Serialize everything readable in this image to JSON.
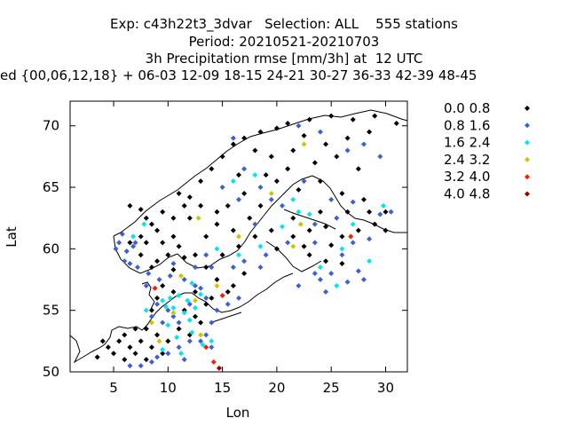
{
  "title": {
    "line1": "Exp: c43h22t3_3dvar   Selection: ALL    555 stations",
    "line2": "Period: 20210521-20210703",
    "line3": "3h Precipitation rmse [mm/3h] at  12 UTC",
    "line4": "ed {00,06,12,18} + 06-03 12-09 18-15 24-21 30-27 36-33 42-39 48-45"
  },
  "chart_data": {
    "type": "scatter",
    "xlabel": "Lon",
    "ylabel": "Lat",
    "xlim": [
      1,
      32
    ],
    "ylim": [
      50,
      72
    ],
    "xticks": [
      5,
      10,
      15,
      20,
      25,
      30
    ],
    "yticks": [
      50,
      55,
      60,
      65,
      70
    ],
    "legend_position": "right",
    "legend": [
      {
        "label": "0.0 0.8",
        "color": "#000000"
      },
      {
        "label": "0.8 1.6",
        "color": "#3a5fd8"
      },
      {
        "label": "1.6 2.4",
        "color": "#00e5ee"
      },
      {
        "label": "2.4 3.2",
        "color": "#c8c800"
      },
      {
        "label": "3.2 4.0",
        "color": "#ff1a00"
      },
      {
        "label": "4.0 4.8",
        "color": "#990000"
      }
    ],
    "series": [
      {
        "name": "0.0 0.8",
        "points": [
          [
            6.5,
            63.5
          ],
          [
            7.5,
            63.2
          ],
          [
            8.0,
            62.5
          ],
          [
            8.5,
            62.0
          ],
          [
            9.0,
            61.5
          ],
          [
            7.5,
            61.0
          ],
          [
            8.0,
            60.5
          ],
          [
            9.5,
            60.5
          ],
          [
            10.5,
            61.0
          ],
          [
            11.0,
            60.2
          ],
          [
            10.0,
            59.5
          ],
          [
            11.5,
            59.3
          ],
          [
            9.0,
            59.0
          ],
          [
            8.5,
            58.5
          ],
          [
            10.5,
            58.3
          ],
          [
            12.0,
            62.5
          ],
          [
            11.5,
            63.5
          ],
          [
            12.0,
            64.2
          ],
          [
            13.0,
            65.5
          ],
          [
            14.0,
            66.5
          ],
          [
            15.0,
            67.5
          ],
          [
            16.0,
            68.5
          ],
          [
            17.0,
            69.0
          ],
          [
            18.5,
            69.5
          ],
          [
            20.0,
            69.8
          ],
          [
            21.0,
            70.2
          ],
          [
            23.0,
            70.5
          ],
          [
            25.0,
            70.8
          ],
          [
            27.0,
            70.5
          ],
          [
            29.0,
            70.8
          ],
          [
            31.0,
            70.2
          ],
          [
            22.5,
            69.2
          ],
          [
            24.5,
            68.5
          ],
          [
            26.5,
            69.0
          ],
          [
            28.5,
            69.5
          ],
          [
            18.0,
            68.0
          ],
          [
            19.5,
            67.5
          ],
          [
            21.0,
            66.5
          ],
          [
            23.5,
            67.0
          ],
          [
            25.5,
            67.5
          ],
          [
            27.5,
            66.5
          ],
          [
            20.0,
            65.5
          ],
          [
            22.0,
            64.8
          ],
          [
            24.0,
            65.5
          ],
          [
            26.0,
            64.5
          ],
          [
            28.0,
            64.0
          ],
          [
            17.0,
            64.5
          ],
          [
            15.5,
            63.5
          ],
          [
            14.5,
            62.0
          ],
          [
            13.5,
            61.0
          ],
          [
            16.0,
            61.5
          ],
          [
            17.5,
            62.5
          ],
          [
            18.5,
            63.5
          ],
          [
            16.5,
            60.2
          ],
          [
            15.0,
            59.5
          ],
          [
            13.5,
            58.5
          ],
          [
            14.5,
            57.5
          ],
          [
            16.0,
            57.0
          ],
          [
            17.0,
            58.0
          ],
          [
            15.5,
            56.5
          ],
          [
            12.5,
            56.5
          ],
          [
            14.0,
            56.0
          ],
          [
            20.0,
            60.0
          ],
          [
            21.5,
            61.0
          ],
          [
            23.0,
            61.5
          ],
          [
            24.5,
            61.8
          ],
          [
            26.0,
            61.0
          ],
          [
            27.5,
            61.5
          ],
          [
            29.0,
            62.0
          ],
          [
            30.0,
            61.5
          ],
          [
            25.0,
            60.3
          ],
          [
            22.5,
            60.2
          ],
          [
            24.0,
            63.0
          ],
          [
            26.5,
            63.0
          ],
          [
            28.5,
            63.0
          ],
          [
            30.0,
            63.0
          ],
          [
            21.5,
            62.5
          ],
          [
            23.0,
            59.5
          ],
          [
            26.0,
            58.8
          ],
          [
            24.5,
            59.0
          ],
          [
            5.0,
            51.5
          ],
          [
            5.5,
            52.5
          ],
          [
            6.0,
            51.0
          ],
          [
            6.5,
            52.0
          ],
          [
            7.0,
            51.5
          ],
          [
            7.5,
            52.5
          ],
          [
            8.0,
            51.0
          ],
          [
            8.5,
            52.0
          ],
          [
            9.0,
            53.0
          ],
          [
            9.5,
            51.5
          ],
          [
            10.0,
            52.5
          ],
          [
            7.0,
            53.5
          ],
          [
            8.0,
            53.5
          ],
          [
            4.5,
            52.0
          ],
          [
            3.5,
            51.2
          ],
          [
            4.0,
            52.5
          ],
          [
            6.0,
            53.0
          ],
          [
            11.0,
            53.5
          ],
          [
            12.0,
            53.0
          ],
          [
            13.0,
            54.0
          ],
          [
            11.5,
            55.0
          ],
          [
            10.5,
            56.5
          ],
          [
            9.0,
            56.0
          ],
          [
            9.5,
            57.0
          ],
          [
            8.5,
            55.0
          ],
          [
            12.5,
            54.5
          ],
          [
            13.5,
            55.5
          ],
          [
            7.5,
            59.5
          ],
          [
            6.5,
            60.5
          ],
          [
            9.5,
            63.0
          ],
          [
            10.5,
            62.5
          ],
          [
            12.5,
            59.5
          ],
          [
            16.5,
            66.0
          ],
          [
            19.0,
            66.0
          ],
          [
            21.5,
            68.0
          ],
          [
            14.5,
            63.0
          ],
          [
            13.0,
            63.5
          ],
          [
            11.0,
            64.5
          ],
          [
            19.5,
            61.5
          ],
          [
            18.0,
            61.0
          ]
        ]
      },
      {
        "name": "0.8 1.6",
        "points": [
          [
            5.5,
            60.5
          ],
          [
            5.8,
            61.2
          ],
          [
            6.2,
            59.8
          ],
          [
            6.0,
            59.0
          ],
          [
            5.2,
            60.0
          ],
          [
            6.8,
            60.2
          ],
          [
            7.2,
            58.5
          ],
          [
            6.5,
            58.8
          ],
          [
            8.2,
            58.0
          ],
          [
            9.2,
            57.5
          ],
          [
            10.2,
            57.8
          ],
          [
            11.5,
            57.5
          ],
          [
            12.5,
            57.0
          ],
          [
            13.0,
            56.8
          ],
          [
            9.0,
            55.5
          ],
          [
            10.0,
            55.0
          ],
          [
            10.5,
            54.5
          ],
          [
            11.0,
            54.0
          ],
          [
            9.5,
            54.0
          ],
          [
            8.5,
            54.5
          ],
          [
            12.0,
            52.5
          ],
          [
            13.0,
            52.5
          ],
          [
            14.0,
            52.0
          ],
          [
            11.0,
            52.0
          ],
          [
            10.0,
            51.5
          ],
          [
            9.0,
            51.2
          ],
          [
            8.5,
            50.8
          ],
          [
            7.5,
            50.5
          ],
          [
            6.5,
            50.5
          ],
          [
            11.5,
            51.0
          ],
          [
            13.5,
            53.0
          ],
          [
            14.0,
            54.0
          ],
          [
            14.5,
            55.0
          ],
          [
            13.5,
            56.0
          ],
          [
            12.0,
            55.5
          ],
          [
            17.0,
            66.5
          ],
          [
            16.0,
            69.0
          ],
          [
            22.0,
            70.0
          ],
          [
            24.0,
            69.5
          ],
          [
            26.5,
            68.0
          ],
          [
            28.0,
            68.5
          ],
          [
            29.5,
            67.5
          ],
          [
            22.5,
            65.5
          ],
          [
            25.0,
            64.0
          ],
          [
            27.0,
            63.8
          ],
          [
            29.5,
            62.8
          ],
          [
            30.5,
            63.0
          ],
          [
            23.5,
            62.0
          ],
          [
            25.5,
            62.5
          ],
          [
            28.5,
            60.8
          ],
          [
            27.0,
            60.5
          ],
          [
            26.0,
            59.5
          ],
          [
            23.5,
            58.0
          ],
          [
            25.0,
            58.0
          ],
          [
            27.5,
            58.2
          ],
          [
            22.0,
            57.0
          ],
          [
            24.0,
            57.5
          ],
          [
            26.5,
            57.3
          ],
          [
            28.0,
            57.5
          ],
          [
            24.5,
            56.5
          ],
          [
            18.5,
            65.0
          ],
          [
            19.5,
            64.0
          ],
          [
            18.0,
            62.0
          ],
          [
            17.0,
            59.0
          ],
          [
            18.5,
            58.5
          ],
          [
            16.0,
            58.5
          ],
          [
            20.5,
            63.5
          ],
          [
            21.0,
            60.5
          ],
          [
            23.5,
            60.5
          ],
          [
            19.0,
            59.5
          ],
          [
            15.0,
            65.0
          ],
          [
            16.5,
            64.0
          ],
          [
            13.5,
            59.5
          ],
          [
            12.5,
            58.5
          ],
          [
            14.0,
            58.5
          ],
          [
            15.5,
            55.5
          ],
          [
            16.5,
            56.0
          ],
          [
            8.0,
            57.0
          ],
          [
            10.5,
            58.8
          ],
          [
            7.0,
            60.5
          ]
        ]
      },
      {
        "name": "1.6 2.4",
        "points": [
          [
            9.5,
            55.8
          ],
          [
            10.2,
            56.0
          ],
          [
            11.0,
            56.2
          ],
          [
            11.8,
            55.8
          ],
          [
            10.5,
            55.2
          ],
          [
            11.5,
            54.8
          ],
          [
            12.0,
            54.2
          ],
          [
            10.0,
            53.8
          ],
          [
            9.8,
            55.3
          ],
          [
            12.5,
            55.2
          ],
          [
            8.0,
            55.0
          ],
          [
            10.8,
            52.8
          ],
          [
            12.2,
            53.2
          ],
          [
            13.2,
            52.2
          ],
          [
            11.2,
            51.5
          ],
          [
            9.5,
            51.8
          ],
          [
            14.0,
            52.5
          ],
          [
            13.0,
            56.3
          ],
          [
            12.2,
            57.2
          ],
          [
            16.0,
            65.5
          ],
          [
            18.0,
            66.0
          ],
          [
            21.5,
            64.0
          ],
          [
            22.0,
            63.0
          ],
          [
            29.8,
            63.5
          ],
          [
            23.0,
            62.8
          ],
          [
            27.0,
            62.0
          ],
          [
            26.0,
            60.0
          ],
          [
            28.5,
            59.0
          ],
          [
            25.5,
            57.0
          ],
          [
            24.0,
            58.5
          ],
          [
            14.5,
            60.0
          ],
          [
            16.5,
            59.5
          ],
          [
            18.5,
            60.2
          ],
          [
            20.5,
            61.8
          ],
          [
            6.8,
            61.0
          ],
          [
            7.8,
            62.0
          ]
        ]
      },
      {
        "name": "2.4 3.2",
        "points": [
          [
            8.5,
            54.0
          ],
          [
            9.2,
            52.5
          ],
          [
            10.5,
            54.8
          ],
          [
            12.5,
            55.8
          ],
          [
            13.0,
            53.0
          ],
          [
            22.5,
            68.5
          ],
          [
            19.5,
            64.5
          ],
          [
            22.2,
            62.0
          ],
          [
            21.5,
            60.2
          ],
          [
            12.8,
            62.5
          ],
          [
            16.5,
            61.0
          ],
          [
            14.5,
            57.0
          ],
          [
            11.2,
            57.8
          ]
        ]
      },
      {
        "name": "3.2 4.0",
        "points": [
          [
            8.8,
            56.8
          ],
          [
            15.0,
            56.2
          ],
          [
            13.5,
            52.0
          ],
          [
            26.8,
            61.0
          ],
          [
            14.2,
            50.8
          ]
        ]
      },
      {
        "name": "4.0 4.8",
        "points": [
          [
            14.7,
            50.3
          ]
        ]
      }
    ]
  }
}
